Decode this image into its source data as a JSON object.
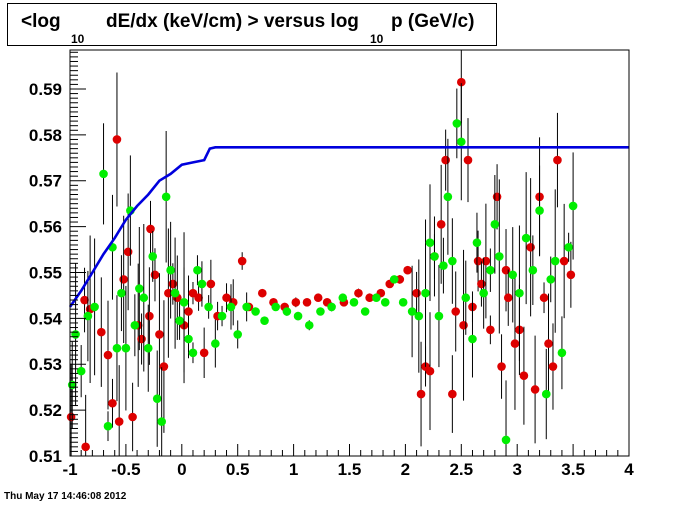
{
  "title": {
    "part1": "<log",
    "sub1": "10",
    "part2": "dE/dx (keV/cm) > versus log",
    "sub2": "10",
    "part3": "p (GeV/c)"
  },
  "timestamp": "Thu May 17 14:46:08 2012",
  "colors": {
    "curve": "#0000dd",
    "series_a": "#dd0000",
    "series_b": "#00ee00"
  },
  "chart_data": {
    "type": "scatter",
    "xlim": [
      -1,
      4
    ],
    "ylim": [
      0.51,
      0.5985
    ],
    "x_ticks": [
      "-1",
      "-0.5",
      "0",
      "0.5",
      "1",
      "1.5",
      "2",
      "2.5",
      "3",
      "3.5",
      "4"
    ],
    "y_ticks": [
      "0.51",
      "0.52",
      "0.53",
      "0.54",
      "0.55",
      "0.56",
      "0.57",
      "0.58",
      "0.59"
    ],
    "curve": {
      "x": [
        -1.0,
        -0.9,
        -0.8,
        -0.7,
        -0.6,
        -0.5,
        -0.4,
        -0.3,
        -0.2,
        -0.1,
        0.0,
        0.1,
        0.2,
        0.25,
        0.3,
        1.0,
        2.0,
        3.0,
        4.0
      ],
      "y": [
        0.5425,
        0.546,
        0.55,
        0.554,
        0.5575,
        0.5615,
        0.5645,
        0.567,
        0.57,
        0.5715,
        0.5735,
        0.574,
        0.5745,
        0.577,
        0.5773,
        0.5773,
        0.5773,
        0.5773,
        0.5773
      ]
    },
    "series": [
      {
        "points": [
          [
            -0.99,
            0.5185
          ],
          [
            -0.87,
            0.544
          ],
          [
            -0.86,
            0.512
          ],
          [
            -0.82,
            0.542
          ],
          [
            -0.72,
            0.537
          ],
          [
            -0.66,
            0.532
          ],
          [
            -0.62,
            0.5215
          ],
          [
            -0.58,
            0.579
          ],
          [
            -0.56,
            0.5175
          ],
          [
            -0.52,
            0.5485
          ],
          [
            -0.48,
            0.5545
          ],
          [
            -0.44,
            0.5185
          ],
          [
            -0.39,
            0.5385
          ],
          [
            -0.36,
            0.5355
          ],
          [
            -0.29,
            0.5405
          ],
          [
            -0.28,
            0.5595
          ],
          [
            -0.24,
            0.5495
          ],
          [
            -0.2,
            0.5365
          ],
          [
            -0.16,
            0.5295
          ],
          [
            -0.12,
            0.5455
          ],
          [
            -0.08,
            0.5475
          ],
          [
            -0.04,
            0.5445
          ],
          [
            0.02,
            0.5385
          ],
          [
            0.06,
            0.5415
          ],
          [
            0.1,
            0.5455
          ],
          [
            0.15,
            0.5445
          ],
          [
            0.2,
            0.5325
          ],
          [
            0.26,
            0.5475
          ],
          [
            0.32,
            0.5405
          ],
          [
            0.4,
            0.5445
          ],
          [
            0.46,
            0.5435
          ],
          [
            0.54,
            0.5525
          ],
          [
            0.6,
            0.5425
          ],
          [
            0.72,
            0.5455
          ],
          [
            0.82,
            0.5435
          ],
          [
            0.92,
            0.5425
          ],
          [
            1.02,
            0.5435
          ],
          [
            1.12,
            0.5435
          ],
          [
            1.22,
            0.5445
          ],
          [
            1.3,
            0.5435
          ],
          [
            1.45,
            0.5435
          ],
          [
            1.58,
            0.5455
          ],
          [
            1.68,
            0.5445
          ],
          [
            1.78,
            0.5455
          ],
          [
            1.86,
            0.5475
          ],
          [
            1.95,
            0.5485
          ],
          [
            2.02,
            0.5505
          ],
          [
            2.1,
            0.5455
          ],
          [
            2.14,
            0.5235
          ],
          [
            2.18,
            0.5295
          ],
          [
            2.22,
            0.5285
          ],
          [
            2.26,
            0.5535
          ],
          [
            2.32,
            0.5605
          ],
          [
            2.36,
            0.5745
          ],
          [
            2.42,
            0.5235
          ],
          [
            2.45,
            0.5415
          ],
          [
            2.5,
            0.5915
          ],
          [
            2.52,
            0.5385
          ],
          [
            2.56,
            0.5745
          ],
          [
            2.6,
            0.5425
          ],
          [
            2.65,
            0.5525
          ],
          [
            2.68,
            0.5475
          ],
          [
            2.72,
            0.5525
          ],
          [
            2.76,
            0.5375
          ],
          [
            2.82,
            0.5665
          ],
          [
            2.86,
            0.5295
          ],
          [
            2.9,
            0.5505
          ],
          [
            2.92,
            0.5445
          ],
          [
            2.98,
            0.5345
          ],
          [
            3.02,
            0.5375
          ],
          [
            3.06,
            0.5275
          ],
          [
            3.12,
            0.5555
          ],
          [
            3.16,
            0.5245
          ],
          [
            3.2,
            0.5665
          ],
          [
            3.24,
            0.5445
          ],
          [
            3.28,
            0.5345
          ],
          [
            3.32,
            0.5295
          ],
          [
            3.36,
            0.5745
          ],
          [
            3.42,
            0.5525
          ],
          [
            3.48,
            0.5495
          ]
        ]
      },
      {
        "points": [
          [
            -0.98,
            0.5255
          ],
          [
            -0.95,
            0.5365
          ],
          [
            -0.9,
            0.5285
          ],
          [
            -0.84,
            0.5405
          ],
          [
            -0.78,
            0.5425
          ],
          [
            -0.7,
            0.5715
          ],
          [
            -0.66,
            0.5165
          ],
          [
            -0.62,
            0.5555
          ],
          [
            -0.58,
            0.5335
          ],
          [
            -0.54,
            0.5455
          ],
          [
            -0.5,
            0.5335
          ],
          [
            -0.46,
            0.5635
          ],
          [
            -0.42,
            0.5385
          ],
          [
            -0.38,
            0.5465
          ],
          [
            -0.34,
            0.5445
          ],
          [
            -0.3,
            0.5335
          ],
          [
            -0.26,
            0.5535
          ],
          [
            -0.22,
            0.5225
          ],
          [
            -0.18,
            0.5175
          ],
          [
            -0.14,
            0.5665
          ],
          [
            -0.1,
            0.5505
          ],
          [
            -0.06,
            0.5455
          ],
          [
            -0.02,
            0.5395
          ],
          [
            0.02,
            0.5435
          ],
          [
            0.06,
            0.5355
          ],
          [
            0.1,
            0.5325
          ],
          [
            0.14,
            0.5505
          ],
          [
            0.18,
            0.5475
          ],
          [
            0.24,
            0.5425
          ],
          [
            0.3,
            0.5345
          ],
          [
            0.36,
            0.5405
          ],
          [
            0.44,
            0.5425
          ],
          [
            0.5,
            0.5365
          ],
          [
            0.58,
            0.5425
          ],
          [
            0.66,
            0.5415
          ],
          [
            0.74,
            0.5395
          ],
          [
            0.84,
            0.5425
          ],
          [
            0.94,
            0.5415
          ],
          [
            1.04,
            0.5405
          ],
          [
            1.14,
            0.5385
          ],
          [
            1.24,
            0.5415
          ],
          [
            1.34,
            0.5425
          ],
          [
            1.44,
            0.5445
          ],
          [
            1.54,
            0.5435
          ],
          [
            1.64,
            0.5415
          ],
          [
            1.74,
            0.5445
          ],
          [
            1.82,
            0.5435
          ],
          [
            1.9,
            0.5485
          ],
          [
            1.98,
            0.5435
          ],
          [
            2.06,
            0.5415
          ],
          [
            2.12,
            0.5405
          ],
          [
            2.18,
            0.5455
          ],
          [
            2.22,
            0.5565
          ],
          [
            2.26,
            0.5535
          ],
          [
            2.3,
            0.5405
          ],
          [
            2.34,
            0.5515
          ],
          [
            2.38,
            0.5665
          ],
          [
            2.42,
            0.5525
          ],
          [
            2.46,
            0.5825
          ],
          [
            2.5,
            0.5785
          ],
          [
            2.54,
            0.5445
          ],
          [
            2.6,
            0.5355
          ],
          [
            2.64,
            0.5565
          ],
          [
            2.7,
            0.5455
          ],
          [
            2.76,
            0.5505
          ],
          [
            2.8,
            0.5605
          ],
          [
            2.84,
            0.5535
          ],
          [
            2.9,
            0.5135
          ],
          [
            2.96,
            0.5495
          ],
          [
            3.02,
            0.5455
          ],
          [
            3.08,
            0.5575
          ],
          [
            3.14,
            0.5505
          ],
          [
            3.2,
            0.5635
          ],
          [
            3.26,
            0.5235
          ],
          [
            3.3,
            0.5485
          ],
          [
            3.34,
            0.5525
          ],
          [
            3.4,
            0.5325
          ],
          [
            3.46,
            0.5555
          ],
          [
            3.5,
            0.5645
          ]
        ]
      }
    ]
  }
}
